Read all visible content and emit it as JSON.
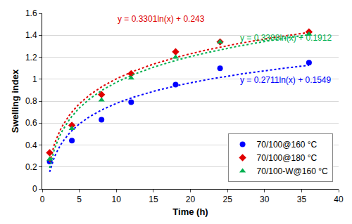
{
  "chart_data": {
    "type": "scatter",
    "x_label": "Time (h)",
    "y_label": "Swelling index",
    "x": [
      1,
      4,
      8,
      12,
      18,
      24,
      36
    ],
    "series": [
      {
        "name": "70/100@160 °C",
        "color": "#0000ff",
        "marker": "circle",
        "values": [
          0.25,
          0.44,
          0.63,
          0.79,
          0.95,
          1.1,
          1.15
        ],
        "trendline": {
          "equation": "y = 0.2711ln(x) + 0.1549",
          "a": 0.2711,
          "b": 0.1549
        }
      },
      {
        "name": "70/100@180 °C",
        "color": "#e00000",
        "marker": "diamond",
        "values": [
          0.33,
          0.58,
          0.86,
          1.05,
          1.25,
          1.34,
          1.43
        ],
        "trendline": {
          "equation": "y = 0.3301ln(x) + 0.243",
          "a": 0.3301,
          "b": 0.243
        }
      },
      {
        "name": "70/100-W@160 °C",
        "color": "#00b050",
        "marker": "triangle-up",
        "values": [
          0.27,
          0.55,
          0.81,
          1.01,
          1.2,
          1.34,
          1.41
        ],
        "trendline": {
          "equation": "y = 0.3388ln(x) + 0.1912",
          "a": 0.3388,
          "b": 0.1912
        }
      }
    ],
    "xlim": [
      0,
      40
    ],
    "xticks": [
      0,
      5,
      10,
      15,
      20,
      25,
      30,
      35,
      40
    ],
    "ylim": [
      0,
      1.6
    ],
    "yticks": [
      0,
      0.2,
      0.4,
      0.6,
      0.8,
      1,
      1.2,
      1.4,
      1.6
    ],
    "grid": true,
    "legend": "bottom-right"
  }
}
